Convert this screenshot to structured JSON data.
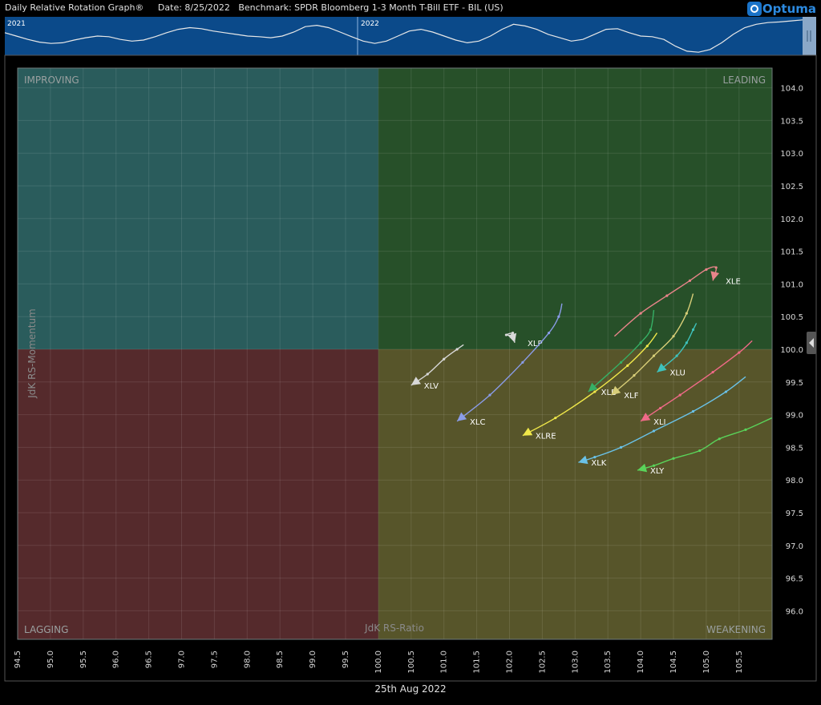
{
  "header": {
    "title": "Daily Relative Rotation Graph®",
    "date": "Date: 8/25/2022",
    "benchmark": "Benchmark: SPDR Bloomberg 1-3 Month T-Bill ETF - BIL (US)",
    "logo": "Optuma"
  },
  "navigator": {
    "labels": [
      "2021",
      "2022"
    ],
    "series": [
      0.6,
      0.5,
      0.4,
      0.32,
      0.28,
      0.3,
      0.38,
      0.45,
      0.5,
      0.48,
      0.4,
      0.35,
      0.38,
      0.48,
      0.6,
      0.7,
      0.75,
      0.72,
      0.65,
      0.6,
      0.55,
      0.5,
      0.48,
      0.45,
      0.5,
      0.62,
      0.78,
      0.82,
      0.75,
      0.62,
      0.48,
      0.35,
      0.28,
      0.35,
      0.5,
      0.65,
      0.7,
      0.62,
      0.5,
      0.38,
      0.3,
      0.35,
      0.5,
      0.7,
      0.85,
      0.8,
      0.7,
      0.55,
      0.45,
      0.35,
      0.4,
      0.55,
      0.7,
      0.72,
      0.6,
      0.5,
      0.48,
      0.4,
      0.2,
      0.05,
      0.02,
      0.1,
      0.3,
      0.55,
      0.75,
      0.85,
      0.9,
      0.92,
      0.95,
      0.98
    ]
  },
  "colors": {
    "improving": "#2a5c5c",
    "leading": "#275029",
    "weakening": "#57552a",
    "lagging": "#552a2c"
  },
  "chart_data": {
    "type": "scatter",
    "xlabel": "JdK RS-Ratio",
    "ylabel": "JdK RS-Momentum",
    "xlim": [
      94.5,
      106.0
    ],
    "ylim": [
      95.6,
      104.3
    ],
    "center": [
      100,
      100
    ],
    "x_ticks": [
      94.5,
      95.0,
      95.5,
      96.0,
      96.5,
      97.0,
      97.5,
      98.0,
      98.5,
      99.0,
      99.5,
      100.0,
      100.5,
      101.0,
      101.5,
      102.0,
      102.5,
      103.0,
      103.5,
      104.0,
      104.5,
      105.0,
      105.5
    ],
    "y_ticks": [
      96.0,
      96.5,
      97.0,
      97.5,
      98.0,
      98.5,
      99.0,
      99.5,
      100.0,
      100.5,
      101.0,
      101.5,
      102.0,
      102.5,
      103.0,
      103.5,
      104.0
    ],
    "quadrants": {
      "improving": "IMPROVING",
      "leading": "LEADING",
      "weakening": "WEAKENING",
      "lagging": "LAGGING"
    },
    "date_label": "25th Aug 2022",
    "series": [
      {
        "name": "XLE",
        "color": "#e8848a",
        "points": [
          [
            103.6,
            100.2
          ],
          [
            104.0,
            100.55
          ],
          [
            104.4,
            100.82
          ],
          [
            104.75,
            101.05
          ],
          [
            105.0,
            101.22
          ],
          [
            105.15,
            101.25
          ],
          [
            105.1,
            101.05
          ]
        ]
      },
      {
        "name": "XLP",
        "color": "#d8d8d8",
        "points": [
          [
            102.0,
            100.2
          ],
          [
            102.05,
            100.25
          ],
          [
            101.95,
            100.22
          ],
          [
            102.05,
            100.2
          ],
          [
            102.08,
            100.1
          ]
        ]
      },
      {
        "name": "XLV",
        "color": "#d8d8d8",
        "points": [
          [
            101.3,
            100.07
          ],
          [
            101.2,
            100.0
          ],
          [
            101.0,
            99.85
          ],
          [
            100.75,
            99.62
          ],
          [
            100.5,
            99.45
          ]
        ]
      },
      {
        "name": "XLC",
        "color": "#8a9ce8",
        "points": [
          [
            102.8,
            100.7
          ],
          [
            102.75,
            100.5
          ],
          [
            102.6,
            100.25
          ],
          [
            102.2,
            99.8
          ],
          [
            101.7,
            99.3
          ],
          [
            101.2,
            98.9
          ]
        ]
      },
      {
        "name": "XLU",
        "color": "#3ec2bc",
        "points": [
          [
            104.85,
            100.4
          ],
          [
            104.8,
            100.3
          ],
          [
            104.7,
            100.1
          ],
          [
            104.55,
            99.9
          ],
          [
            104.25,
            99.65
          ]
        ]
      },
      {
        "name": "XLB",
        "color": "#36b066",
        "points": [
          [
            104.2,
            100.6
          ],
          [
            104.15,
            100.3
          ],
          [
            104.0,
            100.1
          ],
          [
            103.7,
            99.8
          ],
          [
            103.2,
            99.35
          ]
        ]
      },
      {
        "name": "XLF",
        "color": "#d8ce78",
        "points": [
          [
            104.8,
            100.85
          ],
          [
            104.7,
            100.55
          ],
          [
            104.5,
            100.2
          ],
          [
            104.2,
            99.9
          ],
          [
            103.9,
            99.6
          ],
          [
            103.55,
            99.3
          ]
        ]
      },
      {
        "name": "XLRE",
        "color": "#f0e84a",
        "points": [
          [
            104.25,
            100.25
          ],
          [
            104.1,
            100.05
          ],
          [
            103.8,
            99.75
          ],
          [
            103.3,
            99.35
          ],
          [
            102.7,
            98.95
          ],
          [
            102.2,
            98.68
          ]
        ]
      },
      {
        "name": "XLI",
        "color": "#f06a88",
        "points": [
          [
            105.7,
            100.13
          ],
          [
            105.5,
            99.95
          ],
          [
            105.1,
            99.65
          ],
          [
            104.6,
            99.3
          ],
          [
            104.3,
            99.1
          ],
          [
            104.0,
            98.9
          ]
        ]
      },
      {
        "name": "XLK",
        "color": "#6ac2e8",
        "points": [
          [
            105.6,
            99.58
          ],
          [
            105.3,
            99.35
          ],
          [
            104.8,
            99.05
          ],
          [
            104.2,
            98.75
          ],
          [
            103.7,
            98.5
          ],
          [
            103.3,
            98.35
          ],
          [
            103.05,
            98.27
          ]
        ]
      },
      {
        "name": "XLY",
        "color": "#5ad35a",
        "points": [
          [
            106.0,
            98.95
          ],
          [
            105.6,
            98.77
          ],
          [
            105.2,
            98.63
          ],
          [
            104.9,
            98.45
          ],
          [
            104.5,
            98.33
          ],
          [
            104.2,
            98.22
          ],
          [
            103.95,
            98.15
          ]
        ]
      }
    ]
  }
}
